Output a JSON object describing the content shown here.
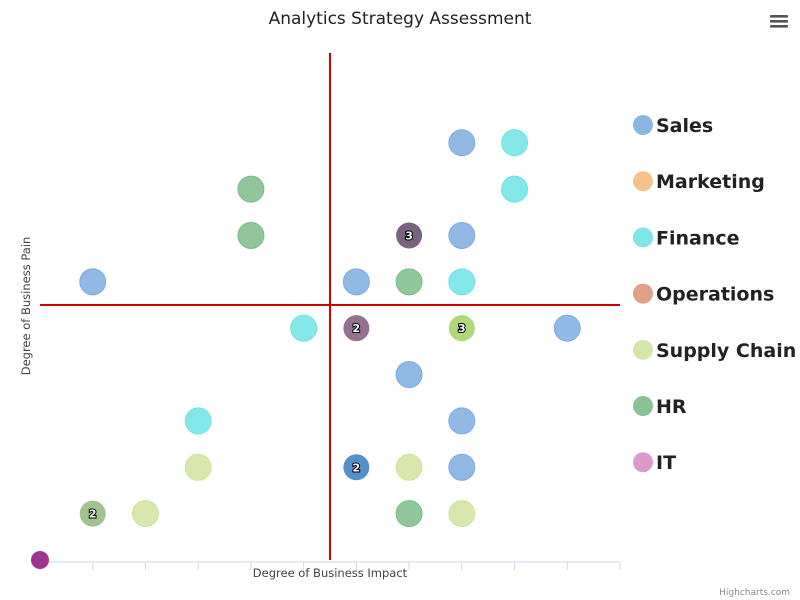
{
  "chart_data": {
    "type": "scatter",
    "title": "Analytics Strategy Assessment",
    "xlabel": "Degree of Business Impact",
    "ylabel": "Degree of Business Pain",
    "xlim": [
      0,
      11
    ],
    "ylim": [
      0,
      11
    ],
    "x_tick_positions": [
      0,
      1,
      2,
      3,
      4,
      5,
      6,
      7,
      8,
      9,
      10,
      11
    ],
    "quadrant_lines": {
      "x": 5.5,
      "y": 5.5,
      "color": "#cc0000"
    },
    "legend_position": "right",
    "series": [
      {
        "name": "Sales",
        "color": "#7caee0",
        "points": [
          [
            8,
            9
          ],
          [
            8,
            7
          ],
          [
            1,
            6
          ],
          [
            6,
            6
          ],
          [
            10,
            5
          ],
          [
            7,
            4
          ],
          [
            8,
            3
          ],
          [
            8,
            2
          ]
        ]
      },
      {
        "name": "Marketing",
        "color": "#f4bb7f",
        "points": []
      },
      {
        "name": "Finance",
        "color": "#6fe3e6",
        "points": [
          [
            9,
            9
          ],
          [
            9,
            8
          ],
          [
            8,
            6
          ],
          [
            5,
            5
          ],
          [
            3,
            3
          ]
        ]
      },
      {
        "name": "Operations",
        "color": "#dd977a",
        "points": []
      },
      {
        "name": "Supply Chain",
        "color": "#d2e39e",
        "points": [
          [
            3,
            2
          ],
          [
            7,
            2
          ],
          [
            2,
            1
          ],
          [
            8,
            1
          ]
        ]
      },
      {
        "name": "HR",
        "color": "#7bbd8a",
        "points": [
          [
            4,
            8
          ],
          [
            4,
            7
          ],
          [
            7,
            6
          ],
          [
            7,
            1
          ]
        ]
      },
      {
        "name": "IT",
        "color": "#d98ec6",
        "points": [
          [
            0,
            0
          ]
        ]
      }
    ],
    "combined_points": [
      {
        "x": 7,
        "y": 7,
        "label": "3",
        "color": "#6a5170"
      },
      {
        "x": 6,
        "y": 5,
        "label": "2",
        "color": "#8a6185"
      },
      {
        "x": 8,
        "y": 5,
        "label": "3",
        "color": "#a6d46a"
      },
      {
        "x": 6,
        "y": 2,
        "label": "2",
        "color": "#3f85c4"
      },
      {
        "x": 1,
        "y": 1,
        "label": "2",
        "color": "#98bd84"
      }
    ],
    "it_marker_color": "#a0358f"
  },
  "ui": {
    "menu_icon": "hamburger-menu-icon",
    "credit": "Highcharts.com"
  }
}
